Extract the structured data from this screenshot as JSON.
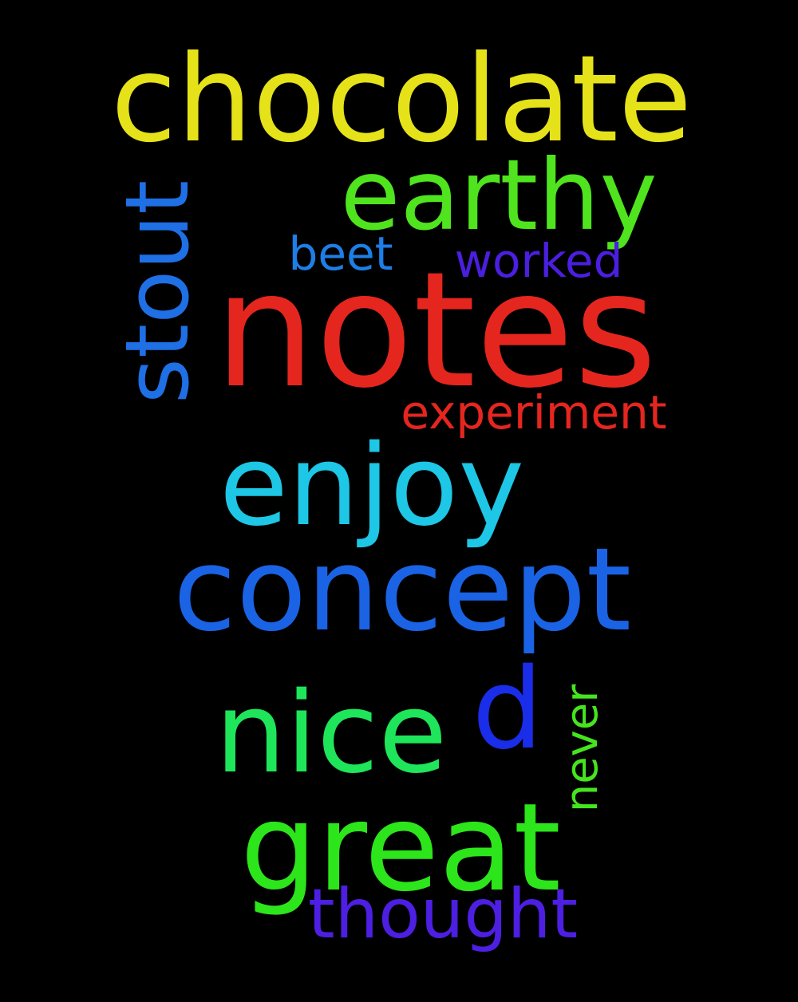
{
  "words": [
    {
      "id": "chocolate",
      "text": "chocolate",
      "color": "#e5e21a"
    },
    {
      "id": "earthy",
      "text": "earthy",
      "color": "#4fe41d"
    },
    {
      "id": "stout",
      "text": "stout",
      "color": "#1f6fe5"
    },
    {
      "id": "beet",
      "text": "beet",
      "color": "#1d7ee5"
    },
    {
      "id": "worked",
      "text": "worked",
      "color": "#4a1fe0"
    },
    {
      "id": "notes",
      "text": "notes",
      "color": "#e5261f"
    },
    {
      "id": "experiment",
      "text": "experiment",
      "color": "#e5261f"
    },
    {
      "id": "enjoy",
      "text": "enjoy",
      "color": "#1dc7e5"
    },
    {
      "id": "concept",
      "text": "concept",
      "color": "#1a63e5"
    },
    {
      "id": "nice",
      "text": "nice",
      "color": "#1ee55a"
    },
    {
      "id": "d",
      "text": "d",
      "color": "#1a2de8"
    },
    {
      "id": "never",
      "text": "never",
      "color": "#45e51d"
    },
    {
      "id": "great",
      "text": "great",
      "color": "#2ce51a"
    },
    {
      "id": "thought",
      "text": "thought",
      "color": "#4d1fe2"
    }
  ]
}
